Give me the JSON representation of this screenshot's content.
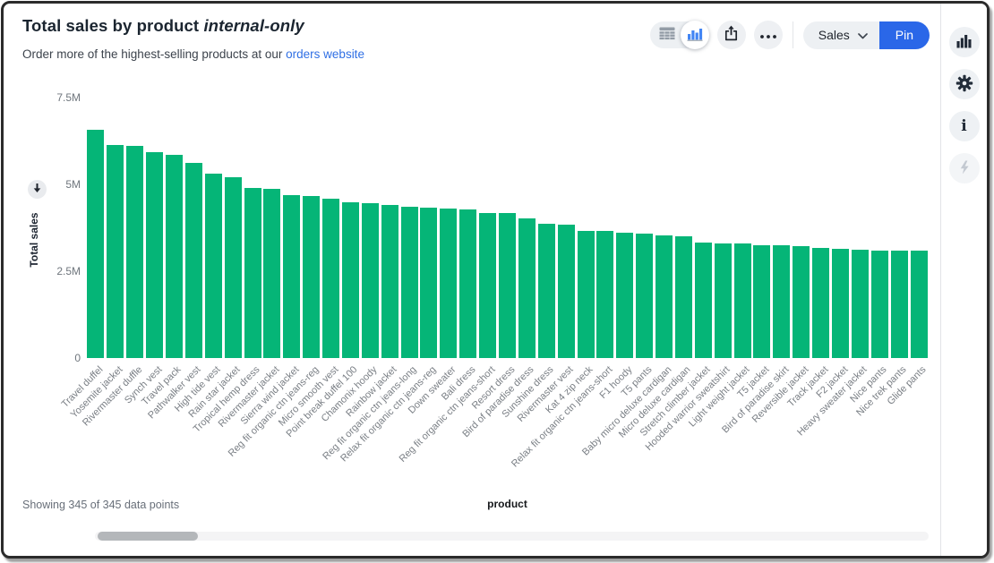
{
  "header": {
    "title": "Total sales by product",
    "title_emphasis": "internal-only",
    "subtitle_prefix": "Order more of the highest-selling products at our ",
    "subtitle_link": "orders website"
  },
  "toolbar": {
    "sales_label": "Sales",
    "pin_label": "Pin",
    "icons": [
      "table-view-icon",
      "bar-chart-view-icon",
      "share-icon",
      "more-options-icon",
      "chevron-down-icon"
    ],
    "pin_color": "#2a67e8"
  },
  "sidebar": {
    "icons": [
      "bar-chart-icon",
      "gear-icon",
      "info-icon",
      "lightning-icon"
    ],
    "lightning_disabled": true
  },
  "footer": {
    "status": "Showing 345 of 345 data points"
  },
  "chart_data": {
    "type": "bar",
    "title": "Total sales by product internal-only",
    "xlabel": "product",
    "ylabel": "Total sales",
    "ylim": [
      0,
      7.5
    ],
    "y_unit": "M",
    "ytick_values": [
      0,
      2.5,
      5,
      7.5
    ],
    "ytick_labels": [
      "0",
      "2.5M",
      "5M",
      "7.5M"
    ],
    "grid": false,
    "bar_color": "#05b577",
    "sort": "descending",
    "categories": [
      "Travel duffel",
      "Yosemite jacket",
      "Rivermaster duffle",
      "Synch vest",
      "Travel pack",
      "Pathwalker vest",
      "High tide vest",
      "Rain star jacket",
      "Tropical hemp dress",
      "Rivermaster jacket",
      "Sierra wind jacket",
      "Reg fit organic ctn jeans-reg",
      "Micro smooth vest",
      "Point break duffel 100",
      "Chamonix hoody",
      "Rainbow jacket",
      "Reg fit organic ctn jeans-long",
      "Relax fit organic ctn jeans-reg",
      "Down sweater",
      "Bali dress",
      "Reg fit organic ctn jeans-short",
      "Resort dress",
      "Bird of paradise dress",
      "Sunshine dress",
      "Rivermaster vest",
      "Kat 4 zip neck",
      "Relax fit organic ctn jeans-short",
      "F1 hoody",
      "T5 pants",
      "Baby micro deluxe cardigan",
      "Micro deluxe cardigan",
      "Stretch climber jacket",
      "Hooded warrior sweatshirt",
      "Light weight jacket",
      "T5 jacket",
      "Bird of paradise skirt",
      "Reversible jacket",
      "Track jacket",
      "F2 jacket",
      "Heavy sweater jacket",
      "Nice pants",
      "Nice trek pants",
      "Glide pants"
    ],
    "values": [
      6.57,
      6.14,
      6.1,
      5.94,
      5.85,
      5.63,
      5.31,
      5.21,
      4.9,
      4.87,
      4.68,
      4.66,
      4.59,
      4.49,
      4.47,
      4.41,
      4.36,
      4.32,
      4.3,
      4.28,
      4.18,
      4.17,
      4.01,
      3.86,
      3.84,
      3.67,
      3.66,
      3.62,
      3.58,
      3.53,
      3.5,
      3.32,
      3.31,
      3.29,
      3.26,
      3.24,
      3.22,
      3.17,
      3.14,
      3.12,
      3.1,
      3.09,
      3.08
    ]
  }
}
